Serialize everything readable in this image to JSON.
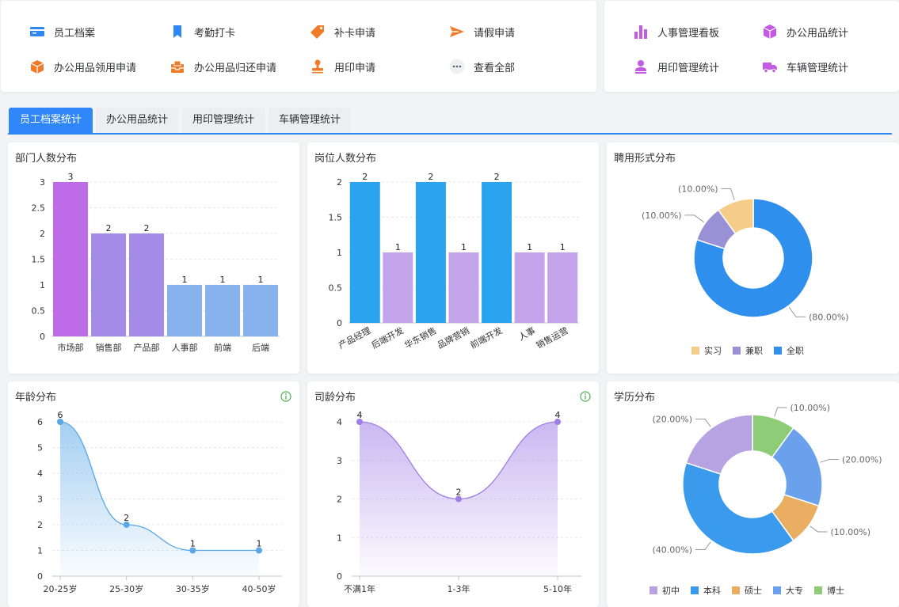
{
  "quick_links_left": [
    {
      "label": "员工档案",
      "icon": "id-card-icon",
      "color": "#2f86f6"
    },
    {
      "label": "考勤打卡",
      "icon": "bookmark-icon",
      "color": "#2f86f6"
    },
    {
      "label": "补卡申请",
      "icon": "tag-icon",
      "color": "#f07c2a"
    },
    {
      "label": "请假申请",
      "icon": "send-icon",
      "color": "#f07c2a"
    },
    {
      "label": "办公用品领用申请",
      "icon": "box-icon",
      "color": "#f07c2a"
    },
    {
      "label": "办公用品归还申请",
      "icon": "inbox-icon",
      "color": "#f07c2a"
    },
    {
      "label": "用印申请",
      "icon": "stamp-icon",
      "color": "#f07c2a"
    },
    {
      "label": "查看全部",
      "icon": "more-icon",
      "color": "#606266"
    }
  ],
  "quick_links_right": [
    {
      "label": "人事管理看板",
      "icon": "bar-chart-icon",
      "color": "#c25ae6"
    },
    {
      "label": "办公用品统计",
      "icon": "cube-icon",
      "color": "#c25ae6"
    },
    {
      "label": "用印管理统计",
      "icon": "user-icon",
      "color": "#c25ae6"
    },
    {
      "label": "车辆管理统计",
      "icon": "truck-icon",
      "color": "#c25ae6"
    }
  ],
  "tabs": [
    "员工档案统计",
    "办公用品统计",
    "用印管理统计",
    "车辆管理统计"
  ],
  "active_tab": 0,
  "cards": {
    "dept": "部门人数分布",
    "post": "岗位人数分布",
    "employ": "聘用形式分布",
    "age": "年龄分布",
    "tenure": "司龄分布",
    "edu": "学历分布"
  },
  "chart_data": [
    {
      "type": "bar",
      "title": "部门人数分布",
      "categories": [
        "市场部",
        "销售部",
        "产品部",
        "人事部",
        "前端",
        "后端"
      ],
      "values": [
        3,
        2,
        2,
        1,
        1,
        1
      ],
      "colors": [
        "#bd6be6",
        "#a48be8",
        "#a48be8",
        "#86b2ee",
        "#86b2ee",
        "#86b2ee"
      ],
      "yticks": [
        0,
        0.5,
        1,
        1.5,
        2,
        2.5,
        3
      ],
      "ylim": [
        0,
        3
      ]
    },
    {
      "type": "bar",
      "title": "岗位人数分布",
      "categories": [
        "产品经理",
        "后端开发",
        "华东销售",
        "品牌营销",
        "前端开发",
        "人事",
        "销售运营"
      ],
      "values": [
        2,
        1,
        2,
        1,
        2,
        1,
        1
      ],
      "colors": [
        "#2aa4ee",
        "#c3a3ea",
        "#2aa4ee",
        "#c3a3ea",
        "#2aa4ee",
        "#c3a3ea",
        "#c3a3ea"
      ],
      "yticks": [
        0,
        0.5,
        1,
        1.5,
        2
      ],
      "ylim": [
        0,
        2
      ]
    },
    {
      "type": "pie",
      "title": "聘用形式分布",
      "slices": [
        {
          "name": "全职",
          "value": 80,
          "label": "(80.00%)",
          "color": "#2e8fec"
        },
        {
          "name": "兼职",
          "value": 10,
          "label": "(10.00%)",
          "color": "#9a90d6"
        },
        {
          "name": "实习",
          "value": 10,
          "label": "(10.00%)",
          "color": "#f6cd88"
        }
      ],
      "legend": [
        "实习",
        "兼职",
        "全职"
      ]
    },
    {
      "type": "area",
      "title": "年龄分布",
      "categories": [
        "20-25岁",
        "25-30岁",
        "30-35岁",
        "40-50岁"
      ],
      "values": [
        6,
        2,
        1,
        1
      ],
      "yticks": [
        0,
        1,
        2,
        3,
        4,
        5,
        6
      ],
      "ylim": [
        0,
        6
      ],
      "color": "#5aa7e6"
    },
    {
      "type": "area",
      "title": "司龄分布",
      "categories": [
        "不满1年",
        "1-3年",
        "5-10年"
      ],
      "values": [
        4,
        2,
        4
      ],
      "yticks": [
        0,
        1,
        2,
        3,
        4
      ],
      "ylim": [
        0,
        4
      ],
      "color": "#9f7ee6"
    },
    {
      "type": "pie",
      "title": "学历分布",
      "slices": [
        {
          "name": "博士",
          "value": 10,
          "label": "(10.00%)",
          "color": "#8fcc78"
        },
        {
          "name": "大专",
          "value": 20,
          "label": "(20.00%)",
          "color": "#6aa0ec"
        },
        {
          "name": "硕士",
          "value": 10,
          "label": "(10.00%)",
          "color": "#e9ae62"
        },
        {
          "name": "本科",
          "value": 40,
          "label": "(40.00%)",
          "color": "#3a9aec"
        },
        {
          "name": "初中",
          "value": 20,
          "label": "(20.00%)",
          "color": "#b7a3e2"
        }
      ],
      "legend": [
        "初中",
        "本科",
        "硕士",
        "大专",
        "博士"
      ]
    }
  ]
}
